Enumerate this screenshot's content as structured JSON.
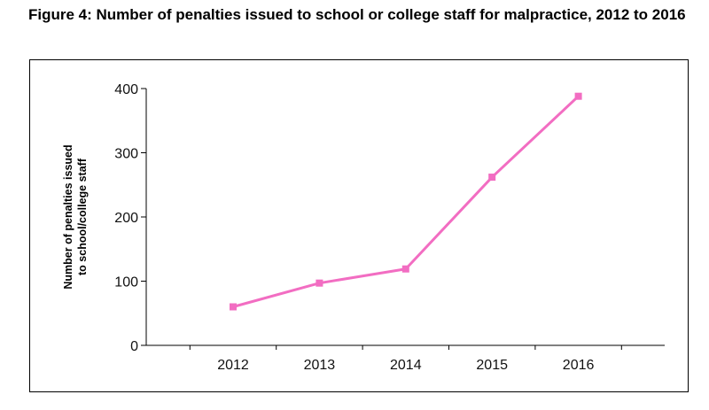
{
  "figure": {
    "title": "Figure 4: Number of penalties issued to school or college staff for malpractice, 2012 to 2016"
  },
  "chart_data": {
    "type": "line",
    "title": "",
    "xlabel": "",
    "ylabel_line1": "Number of penalties issued",
    "ylabel_line2": "to school/college staff",
    "categories": [
      "2012",
      "2013",
      "2014",
      "2015",
      "2016"
    ],
    "series": [
      {
        "values": [
          60,
          97,
          119,
          262,
          388
        ],
        "color": "#f26dc2"
      }
    ],
    "ylim": [
      0,
      400
    ],
    "yticks": [
      0,
      100,
      200,
      300,
      400
    ],
    "grid": false,
    "legend": "none"
  }
}
